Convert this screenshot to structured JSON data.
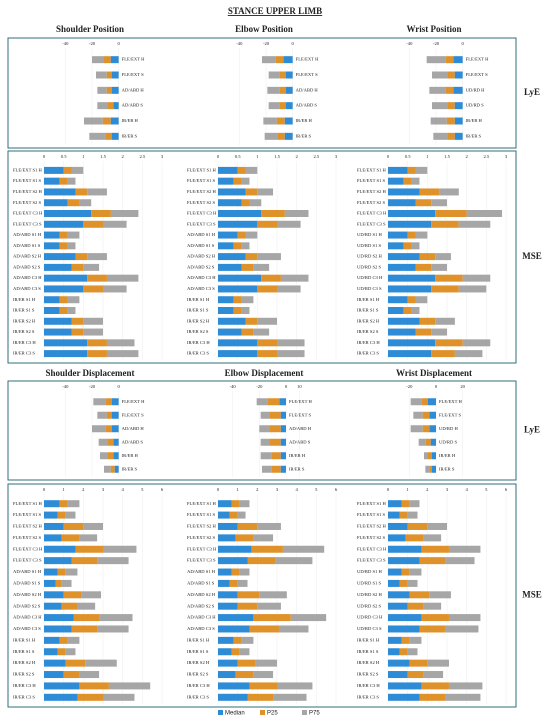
{
  "title": "STANCE UPPER LIMB",
  "sections": [
    {
      "columns": [
        "Shoulder Position",
        "Elbow Position",
        "Wrist Position"
      ],
      "panels": [
        "LyE",
        "MSE"
      ]
    },
    {
      "columns": [
        "Shoulder Displacement",
        "Elbow Displacement",
        "Wrist Displacement"
      ],
      "panels": [
        "LyE",
        "MSE"
      ]
    }
  ],
  "chart_data": [
    {
      "type": "bar",
      "orientation": "horizontal",
      "stacked": true,
      "xlim": [
        -50,
        10
      ],
      "xticks": [
        -40,
        -20,
        0
      ],
      "categories": [
        "FLE/EXT H",
        "FLE/EXT S",
        "AD/ABD H",
        "AD/ABD S",
        "IR/ER H",
        "IR/ER S"
      ],
      "series": [
        {
          "name": "Median",
          "color": "#2e8bd6",
          "values": [
            -6,
            -5,
            -5,
            -4,
            -6,
            -5
          ]
        },
        {
          "name": "P25",
          "color": "#e0922a",
          "values": [
            -5,
            -4,
            -4,
            -4,
            -6,
            -5
          ]
        },
        {
          "name": "P75",
          "color": "#a6a6a6",
          "values": [
            -9,
            -8,
            -7,
            -8,
            -14,
            -12
          ]
        }
      ]
    },
    {
      "type": "bar",
      "orientation": "horizontal",
      "stacked": true,
      "xlim": [
        -50,
        10
      ],
      "xticks": [
        -40,
        -20,
        0
      ],
      "categories": [
        "FLE/EXT H",
        "FLE/EXT S",
        "AD/ABD H",
        "AD/ABD S",
        "IR/ER H",
        "IR/ER S"
      ],
      "series": [
        {
          "name": "Median",
          "color": "#2e8bd6",
          "values": [
            -7,
            -5,
            -5,
            -5,
            -6,
            -6
          ]
        },
        {
          "name": "P25",
          "color": "#e0922a",
          "values": [
            -6,
            -5,
            -5,
            -5,
            -6,
            -5
          ]
        },
        {
          "name": "P75",
          "color": "#a6a6a6",
          "values": [
            -10,
            -8,
            -9,
            -8,
            -10,
            -10
          ]
        }
      ]
    },
    {
      "type": "bar",
      "orientation": "horizontal",
      "stacked": true,
      "xlim": [
        -50,
        10
      ],
      "xticks": [
        -40,
        -20,
        0
      ],
      "categories": [
        "FLE/EXT H",
        "FLE/EXT S",
        "UD/RD H",
        "UD/RD S",
        "IR/ER H",
        "IR/ER S"
      ],
      "series": [
        {
          "name": "Median",
          "color": "#2e8bd6",
          "values": [
            -7,
            -6,
            -7,
            -6,
            -6,
            -6
          ]
        },
        {
          "name": "P25",
          "color": "#e0922a",
          "values": [
            -6,
            -5,
            -6,
            -5,
            -6,
            -5
          ]
        },
        {
          "name": "P75",
          "color": "#a6a6a6",
          "values": [
            -14,
            -12,
            -12,
            -12,
            -12,
            -11
          ]
        }
      ]
    },
    {
      "type": "bar",
      "orientation": "horizontal",
      "stacked": true,
      "xlim": [
        0,
        3
      ],
      "xticks": [
        0,
        0.5,
        1,
        1.5,
        2,
        2.5,
        3
      ],
      "categories": [
        "FLE/EXT S1 H",
        "FLE/EXT S1 S",
        "FLE/EXT S2 H",
        "FLE/EXT S2 S",
        "FLE/EXT C3 H",
        "FLE/EXT C3 S",
        "AD/ABD S1 H",
        "AD/ABD S1 S",
        "AD/ABD S2 H",
        "AD/ABD S2 S",
        "AD/ABD C3 H",
        "AD/ABD C3 S",
        "IR/ER S1 H",
        "IR/ER S1 S",
        "IR/ER S2 H",
        "IR/ER S2 S",
        "IR/ER C3 H",
        "IR/ER C3 S"
      ],
      "series": [
        {
          "name": "Median",
          "color": "#2e8bd6",
          "values": [
            0.5,
            0.4,
            0.8,
            0.6,
            1.2,
            1.0,
            0.4,
            0.4,
            0.8,
            0.7,
            1.1,
            1.0,
            0.4,
            0.4,
            0.7,
            0.7,
            1.1,
            1.1
          ]
        },
        {
          "name": "P25",
          "color": "#e0922a",
          "values": [
            0.2,
            0.2,
            0.3,
            0.3,
            0.5,
            0.5,
            0.2,
            0.2,
            0.3,
            0.3,
            0.5,
            0.5,
            0.2,
            0.2,
            0.3,
            0.3,
            0.5,
            0.5
          ]
        },
        {
          "name": "P75",
          "color": "#a6a6a6",
          "values": [
            0.3,
            0.2,
            0.5,
            0.3,
            0.7,
            0.6,
            0.3,
            0.2,
            0.5,
            0.4,
            0.8,
            0.6,
            0.3,
            0.2,
            0.5,
            0.5,
            0.7,
            0.8
          ]
        }
      ]
    },
    {
      "type": "bar",
      "orientation": "horizontal",
      "stacked": true,
      "xlim": [
        0,
        3
      ],
      "xticks": [
        0,
        0.5,
        1,
        1.5,
        2,
        2.5,
        3
      ],
      "categories": [
        "FLE/EXT S1 H",
        "FLE/EXT S1 S",
        "FLE/EXT S2 H",
        "FLE/EXT S2 S",
        "FLE/EXT C3 H",
        "FLE/EXT C3 S",
        "AD/ABD S1 H",
        "AD/ABD S1 S",
        "AD/ABD S2 H",
        "AD/ABD S2 S",
        "AD/ABD C3 H",
        "AD/ABD C3 S",
        "IR/ER S1 H",
        "IR/ER S1 S",
        "IR/ER S2 H",
        "IR/ER S2 S",
        "IR/ER C3 H",
        "IR/ER C3 S"
      ],
      "series": [
        {
          "name": "Median",
          "color": "#2e8bd6",
          "values": [
            0.5,
            0.4,
            0.7,
            0.6,
            1.1,
            1.0,
            0.5,
            0.4,
            0.7,
            0.6,
            1.1,
            1.0,
            0.4,
            0.4,
            0.7,
            0.6,
            1.0,
            1.0
          ]
        },
        {
          "name": "P25",
          "color": "#e0922a",
          "values": [
            0.2,
            0.2,
            0.3,
            0.2,
            0.6,
            0.5,
            0.2,
            0.2,
            0.3,
            0.3,
            0.5,
            0.5,
            0.2,
            0.2,
            0.3,
            0.3,
            0.5,
            0.5
          ]
        },
        {
          "name": "P75",
          "color": "#a6a6a6",
          "values": [
            0.3,
            0.2,
            0.4,
            0.3,
            0.6,
            0.6,
            0.3,
            0.2,
            0.6,
            0.4,
            0.7,
            0.6,
            0.3,
            0.2,
            0.5,
            0.4,
            0.7,
            0.7
          ]
        }
      ]
    },
    {
      "type": "bar",
      "orientation": "horizontal",
      "stacked": true,
      "xlim": [
        0,
        3
      ],
      "xticks": [
        0,
        0.5,
        1,
        1.5,
        2,
        2.5,
        3
      ],
      "categories": [
        "FLE/EXT S1 H",
        "FLE/EXT S1 S",
        "FLE/EXT S2 H",
        "FLE/EXT S2 S",
        "FLE/EXT C3 H",
        "FLE/EXT C3 S",
        "UD/RD S1 H",
        "UD/RD S1 S",
        "UD/RD S2 H",
        "UD/RD S2 S",
        "UD/RD C3 H",
        "UD/RD C3 S",
        "IR/ER S1 H",
        "IR/ER S1 S",
        "IR/ER S2 H",
        "IR/ER S2 S",
        "IR/ER C3 H",
        "IR/ER C3 S"
      ],
      "series": [
        {
          "name": "Median",
          "color": "#2e8bd6",
          "values": [
            0.5,
            0.4,
            0.8,
            0.7,
            1.2,
            1.1,
            0.5,
            0.4,
            0.8,
            0.7,
            1.2,
            1.1,
            0.5,
            0.4,
            0.8,
            0.7,
            1.2,
            1.1
          ]
        },
        {
          "name": "P25",
          "color": "#e0922a",
          "values": [
            0.2,
            0.2,
            0.5,
            0.4,
            0.8,
            0.7,
            0.2,
            0.2,
            0.4,
            0.4,
            0.7,
            0.7,
            0.2,
            0.2,
            0.4,
            0.4,
            0.7,
            0.6
          ]
        },
        {
          "name": "P75",
          "color": "#a6a6a6",
          "values": [
            0.3,
            0.2,
            0.5,
            0.4,
            0.9,
            0.8,
            0.3,
            0.2,
            0.4,
            0.4,
            0.7,
            0.7,
            0.3,
            0.2,
            0.5,
            0.4,
            0.7,
            0.7
          ]
        }
      ]
    },
    {
      "type": "bar",
      "orientation": "horizontal",
      "stacked": true,
      "xlim": [
        -50,
        10
      ],
      "xticks": [
        -40,
        -20,
        0
      ],
      "categories": [
        "FLE/EXT H",
        "FLE/EXT S",
        "AD/ABD H",
        "AD/ABD S",
        "IR/ER H",
        "IR/ER S"
      ],
      "series": [
        {
          "name": "Median",
          "color": "#2e8bd6",
          "values": [
            -5,
            -5,
            -5,
            -4,
            -4,
            -3
          ]
        },
        {
          "name": "P25",
          "color": "#e0922a",
          "values": [
            -5,
            -4,
            -5,
            -4,
            -4,
            -3
          ]
        },
        {
          "name": "P75",
          "color": "#a6a6a6",
          "values": [
            -9,
            -7,
            -10,
            -7,
            -6,
            -5
          ]
        }
      ]
    },
    {
      "type": "bar",
      "orientation": "horizontal",
      "stacked": true,
      "xlim": [
        -45,
        15
      ],
      "xticks": [
        -40,
        -20,
        0,
        10
      ],
      "categories": [
        "FLE/EXT H",
        "FLE/EXT S",
        "AD/ABD H",
        "AD/ABD S",
        "IR/ER H",
        "IR/ER S"
      ],
      "series": [
        {
          "name": "Median",
          "color": "#2e8bd6",
          "values": [
            -5,
            -4,
            -4,
            -4,
            -4,
            -4
          ]
        },
        {
          "name": "P25",
          "color": "#e0922a",
          "values": [
            -9,
            -8,
            -8,
            -8,
            -7,
            -7
          ]
        },
        {
          "name": "P75",
          "color": "#a6a6a6",
          "values": [
            -8,
            -7,
            -8,
            -7,
            -8,
            -7
          ]
        }
      ]
    },
    {
      "type": "bar",
      "orientation": "horizontal",
      "stacked": true,
      "xlim": [
        -30,
        30
      ],
      "xticks": [
        -20,
        0,
        20
      ],
      "categories": [
        "FLE/EXT H",
        "FLE/EXT S",
        "UD/RD H",
        "UD/RD S",
        "IR/ER H",
        "IR/ER S"
      ],
      "series": [
        {
          "name": "Median",
          "color": "#2e8bd6",
          "values": [
            -6,
            -5,
            -5,
            -4,
            -3,
            -3
          ]
        },
        {
          "name": "P25",
          "color": "#e0922a",
          "values": [
            -5,
            -5,
            -5,
            -4,
            -3,
            -2
          ]
        },
        {
          "name": "P75",
          "color": "#a6a6a6",
          "values": [
            -8,
            -7,
            -9,
            -5,
            -3,
            -3
          ]
        }
      ]
    },
    {
      "type": "bar",
      "orientation": "horizontal",
      "stacked": true,
      "xlim": [
        0,
        6
      ],
      "xticks": [
        0,
        1,
        2,
        3,
        4,
        5,
        6
      ],
      "categories": [
        "FLE/EXT S1 H",
        "FLE/EXT S1 S",
        "FLE/EXT S2 H",
        "FLE/EXT S2 S",
        "FLE/EXT C3 H",
        "FLE/EXT C3 S",
        "AD/ABD S1 H",
        "AD/ABD S1 S",
        "AD/ABD S2 H",
        "AD/ABD S2 S",
        "AD/ABD C3 H",
        "AD/ABD C3 S",
        "IR/ER S1 H",
        "IR/ER S1 S",
        "IR/ER S2 H",
        "IR/ER S2 S",
        "IR/ER C3 H",
        "IR/ER C3 S"
      ],
      "series": [
        {
          "name": "Median",
          "color": "#2e8bd6",
          "values": [
            0.8,
            0.7,
            1.0,
            0.9,
            1.6,
            1.4,
            0.7,
            0.6,
            1.0,
            0.9,
            1.5,
            1.4,
            0.8,
            0.7,
            1.1,
            1.0,
            1.8,
            1.7
          ]
        },
        {
          "name": "P25",
          "color": "#e0922a",
          "values": [
            0.4,
            0.4,
            1.0,
            0.9,
            1.4,
            1.3,
            0.4,
            0.3,
            0.9,
            0.8,
            1.3,
            1.3,
            0.4,
            0.4,
            1.0,
            0.8,
            1.5,
            1.3
          ]
        },
        {
          "name": "P75",
          "color": "#a6a6a6",
          "values": [
            0.6,
            0.5,
            1.0,
            0.9,
            1.7,
            1.6,
            0.6,
            0.5,
            1.0,
            0.9,
            1.7,
            1.6,
            0.6,
            0.5,
            1.6,
            1.0,
            2.1,
            1.6
          ]
        }
      ]
    },
    {
      "type": "bar",
      "orientation": "horizontal",
      "stacked": true,
      "xlim": [
        0,
        6
      ],
      "xticks": [
        0,
        1,
        2,
        3,
        4,
        5,
        6
      ],
      "categories": [
        "FLE/EXT S1 H",
        "FLE/EXT S1 S",
        "FLE/EXT S2 H",
        "FLE/EXT S2 S",
        "FLE/EXT C3 H",
        "FLE/EXT C3 S",
        "AD/ABD S1 H",
        "AD/ABD S1 S",
        "AD/ABD S2 H",
        "AD/ABD S2 S",
        "AD/ABD C3 H",
        "AD/ABD C3 S",
        "IR/ER S1 H",
        "IR/ER S1 S",
        "IR/ER S2 H",
        "IR/ER S2 S",
        "IR/ER C3 H",
        "IR/ER C3 S"
      ],
      "series": [
        {
          "name": "Median",
          "color": "#2e8bd6",
          "values": [
            0.7,
            0.6,
            1.0,
            0.9,
            1.7,
            1.5,
            0.7,
            0.6,
            1.0,
            1.0,
            1.8,
            1.6,
            0.8,
            0.7,
            1.0,
            0.9,
            1.6,
            1.5
          ]
        },
        {
          "name": "P25",
          "color": "#e0922a",
          "values": [
            0.4,
            0.4,
            1.0,
            0.9,
            1.6,
            1.4,
            0.4,
            0.4,
            1.1,
            1.0,
            1.9,
            1.5,
            0.4,
            0.4,
            0.9,
            0.9,
            1.4,
            1.3
          ]
        },
        {
          "name": "P75",
          "color": "#a6a6a6",
          "values": [
            0.5,
            0.4,
            1.2,
            1.0,
            2.1,
            1.9,
            0.5,
            0.5,
            1.4,
            1.2,
            1.8,
            1.5,
            0.6,
            0.5,
            1.1,
            1.0,
            1.8,
            1.7
          ]
        }
      ]
    },
    {
      "type": "bar",
      "orientation": "horizontal",
      "stacked": true,
      "xlim": [
        0,
        6
      ],
      "xticks": [
        0,
        1,
        2,
        3,
        4,
        5,
        6
      ],
      "categories": [
        "FLE/EXT S1 H",
        "FLE/EXT S1 S",
        "FLE/EXT S2 H",
        "FLE/EXT S2 S",
        "FLE/EXT C3 H",
        "FLE/EXT C3 S",
        "UD/RD S1 H",
        "UD/RD S1 S",
        "UD/RD S2 H",
        "UD/RD S2 S",
        "UD/RD C3 H",
        "UD/RD C3 S",
        "IR/ER S1 H",
        "IR/ER S1 S",
        "IR/ER S2 H",
        "IR/ER S2 S",
        "IR/ER C3 H",
        "IR/ER C3 S"
      ],
      "series": [
        {
          "name": "Median",
          "color": "#2e8bd6",
          "values": [
            0.7,
            0.6,
            1.0,
            0.9,
            1.7,
            1.6,
            0.7,
            0.6,
            1.1,
            1.0,
            1.7,
            1.6,
            0.7,
            0.6,
            1.1,
            1.0,
            1.7,
            1.6
          ]
        },
        {
          "name": "P25",
          "color": "#e0922a",
          "values": [
            0.4,
            0.4,
            1.0,
            0.9,
            1.4,
            1.3,
            0.4,
            0.4,
            1.0,
            0.8,
            1.4,
            1.3,
            0.4,
            0.4,
            0.9,
            0.8,
            1.4,
            1.3
          ]
        },
        {
          "name": "P75",
          "color": "#a6a6a6",
          "values": [
            0.5,
            0.5,
            1.0,
            0.9,
            1.6,
            1.5,
            0.6,
            0.5,
            1.1,
            0.9,
            1.6,
            1.7,
            0.6,
            0.5,
            1.1,
            1.0,
            1.7,
            1.8
          ]
        }
      ]
    }
  ]
}
